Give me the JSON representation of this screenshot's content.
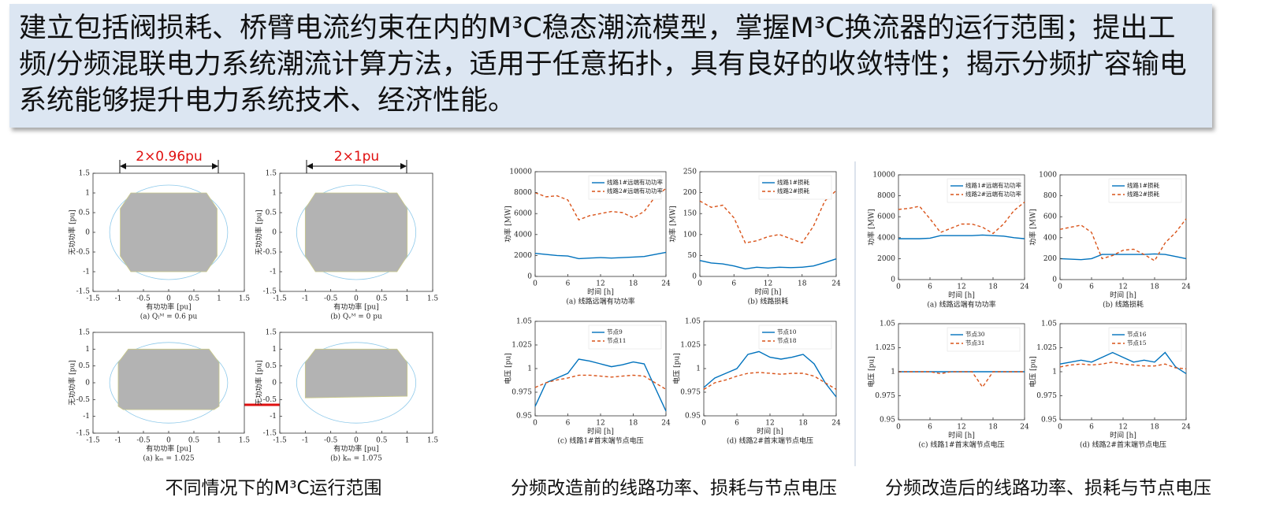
{
  "banner": {
    "text": "建立包括阀损耗、桥臂电流约束在内的M³C稳态潮流模型，掌握M³C换流器的运行范围；提出工频/分频混联电力系统潮流计算方法，适用于任意拓扑，具有良好的收敛特性；揭示分频扩容输电系统能够提升电力系统技术、经济性能。"
  },
  "captions": [
    "不同情况下的M³C运行范围",
    "分频改造前的线路功率、损耗与节点电压",
    "分频改造后的线路功率、损耗与节点电压"
  ],
  "chart_data": [
    {
      "type": "area",
      "subtitle": "(a) Qₗᴹ = 0.6 pu",
      "annotation": "2×0.96pu",
      "xlabel": "有功功率 [pu]",
      "ylabel": "无功功率 [pu]",
      "xlim": [
        -1.5,
        1.5
      ],
      "ylim": [
        -1.5,
        1.5
      ],
      "xticks": [
        -1.5,
        -1,
        -0.5,
        0,
        0.5,
        1,
        1.5
      ],
      "yticks": [
        -1.5,
        -1,
        -0.5,
        0,
        0.5,
        1,
        1.5
      ],
      "series": [
        {
          "color": "#b3b3b3",
          "x": [
            -0.96,
            -0.96,
            -0.75,
            0.75,
            0.96,
            0.96,
            0.75,
            -0.75
          ],
          "values": [
            -0.6,
            0.6,
            1,
            1,
            0.6,
            -0.6,
            -1,
            -1
          ]
        }
      ]
    },
    {
      "type": "area",
      "subtitle": "(b) Qᵥᴹ = 0 pu",
      "annotation": "2×1pu",
      "xlabel": "有功功率 [pu]",
      "ylabel": "无功功率 [pu]",
      "xlim": [
        -1.5,
        1.5
      ],
      "ylim": [
        -1.5,
        1.5
      ],
      "xticks": [
        -1.5,
        -1,
        -0.5,
        0,
        0.5,
        1,
        1.5
      ],
      "yticks": [
        -1.5,
        -1,
        -0.5,
        0,
        0.5,
        1,
        1.5
      ],
      "series": [
        {
          "color": "#b3b3b3",
          "x": [
            -1,
            -1,
            -0.8,
            0.8,
            1,
            1,
            0.8,
            -0.8
          ],
          "values": [
            -0.6,
            0.6,
            1,
            1,
            0.6,
            -0.6,
            -1,
            -1
          ]
        }
      ]
    },
    {
      "type": "area",
      "subtitle": "(a) kₘ = 1.025",
      "xlabel": "有功功率 [pu]",
      "ylabel": "无功功率 [pu]",
      "xlim": [
        -1.5,
        1.5
      ],
      "ylim": [
        -1.5,
        1.5
      ],
      "xticks": [
        -1.5,
        -1,
        -0.5,
        0,
        0.5,
        1,
        1.5
      ],
      "yticks": [
        -1.5,
        -1,
        -0.5,
        0,
        0.5,
        1,
        1.5
      ],
      "series": [
        {
          "color": "#b3b3b3",
          "x": [
            -1,
            -1,
            -0.8,
            0.8,
            1,
            1,
            0.9,
            -0.9
          ],
          "values": [
            -0.7,
            0.6,
            1,
            1,
            0.6,
            -0.7,
            -0.8,
            -0.8
          ]
        }
      ]
    },
    {
      "type": "area",
      "subtitle": "(b) kₘ = 1.075",
      "xlabel": "有功功率 [pu]",
      "ylabel": "无功功率 [pu]",
      "xlim": [
        -1.5,
        1.5
      ],
      "ylim": [
        -1.5,
        1.5
      ],
      "xticks": [
        -1.5,
        -1,
        -0.5,
        0,
        0.5,
        1,
        1.5
      ],
      "yticks": [
        -1.5,
        -1,
        -0.5,
        0,
        0.5,
        1,
        1.5
      ],
      "series": [
        {
          "color": "#b3b3b3",
          "x": [
            -1,
            -1,
            -0.8,
            0.8,
            1,
            1
          ],
          "values": [
            -0.45,
            0.6,
            1,
            1,
            0.6,
            -0.4
          ]
        }
      ]
    },
    {
      "type": "line",
      "subtitle": "(a) 线路远端有功功率",
      "xlabel": "时间 [h]",
      "ylabel": "功率 [MW]",
      "xlim": [
        0,
        24
      ],
      "ylim": [
        0,
        10000
      ],
      "xticks": [
        0,
        6,
        12,
        18,
        24
      ],
      "yticks": [
        0,
        2000,
        4000,
        6000,
        8000,
        10000
      ],
      "x": [
        0,
        2,
        4,
        6,
        8,
        10,
        12,
        14,
        16,
        18,
        20,
        22,
        24
      ],
      "series": [
        {
          "name": "线路1#远端有功功率",
          "color": "#0072bd",
          "values": [
            2200,
            2100,
            2000,
            1950,
            1700,
            1750,
            1800,
            1750,
            1800,
            1850,
            1900,
            2100,
            2300
          ]
        },
        {
          "name": "线路2#远端有功功率",
          "color": "#d95319",
          "dash": true,
          "values": [
            8000,
            7600,
            7700,
            7300,
            5400,
            5800,
            6000,
            6200,
            6100,
            5600,
            6200,
            7600,
            8400
          ]
        }
      ]
    },
    {
      "type": "line",
      "subtitle": "(b) 线路损耗",
      "xlabel": "时间 [h]",
      "ylabel": "功率 [MW]",
      "xlim": [
        0,
        24
      ],
      "ylim": [
        0,
        250
      ],
      "xticks": [
        0,
        6,
        12,
        18,
        24
      ],
      "yticks": [
        0,
        50,
        100,
        150,
        200,
        250
      ],
      "x": [
        0,
        2,
        4,
        6,
        8,
        10,
        12,
        14,
        16,
        18,
        20,
        22,
        24
      ],
      "series": [
        {
          "name": "线路1#损耗",
          "color": "#0072bd",
          "values": [
            38,
            32,
            30,
            25,
            18,
            22,
            20,
            22,
            21,
            22,
            25,
            33,
            42
          ]
        },
        {
          "name": "线路2#损耗",
          "color": "#d95319",
          "dash": true,
          "values": [
            180,
            165,
            170,
            140,
            80,
            85,
            95,
            100,
            90,
            80,
            120,
            180,
            205
          ]
        }
      ]
    },
    {
      "type": "line",
      "subtitle": "(c) 线路1#首末端节点电压",
      "xlabel": "时间 [h]",
      "ylabel": "电压 [pu]",
      "xlim": [
        0,
        24
      ],
      "ylim": [
        0.95,
        1.05
      ],
      "xticks": [
        0,
        6,
        12,
        18,
        24
      ],
      "yticks": [
        0.95,
        0.975,
        1,
        1.025,
        1.05
      ],
      "x": [
        0,
        2,
        4,
        6,
        8,
        10,
        12,
        14,
        16,
        18,
        20,
        22,
        24
      ],
      "series": [
        {
          "name": "节点9",
          "color": "#0072bd",
          "values": [
            0.96,
            0.985,
            0.99,
            0.995,
            1.01,
            1.008,
            1.005,
            1.002,
            1.004,
            1.007,
            1.005,
            0.98,
            0.955
          ]
        },
        {
          "name": "节点11",
          "color": "#d95319",
          "dash": true,
          "values": [
            0.98,
            0.985,
            0.988,
            0.99,
            0.993,
            0.993,
            0.992,
            0.991,
            0.992,
            0.993,
            0.992,
            0.985,
            0.978
          ]
        }
      ]
    },
    {
      "type": "line",
      "subtitle": "(d) 线路2#首末端节点电压",
      "xlabel": "时间 [h]",
      "ylabel": "电压 [pu]",
      "xlim": [
        0,
        24
      ],
      "ylim": [
        0.95,
        1.05
      ],
      "xticks": [
        0,
        6,
        12,
        18,
        24
      ],
      "yticks": [
        0.95,
        0.975,
        1,
        1.025,
        1.05
      ],
      "x": [
        0,
        2,
        4,
        6,
        8,
        10,
        12,
        14,
        16,
        18,
        20,
        22,
        24
      ],
      "series": [
        {
          "name": "节点10",
          "color": "#0072bd",
          "values": [
            0.98,
            0.99,
            0.995,
            1.0,
            1.015,
            1.018,
            1.012,
            1.01,
            1.012,
            1.015,
            1.005,
            0.985,
            0.97
          ]
        },
        {
          "name": "节点18",
          "color": "#d95319",
          "dash": true,
          "values": [
            0.978,
            0.985,
            0.988,
            0.992,
            0.995,
            0.996,
            0.995,
            0.994,
            0.995,
            0.995,
            0.992,
            0.985,
            0.978
          ]
        }
      ]
    },
    {
      "type": "line",
      "subtitle": "(a) 线路远端有功功率",
      "xlabel": "时间 [h]",
      "ylabel": "功率 [MW]",
      "xlim": [
        0,
        24
      ],
      "ylim": [
        0,
        10000
      ],
      "xticks": [
        0,
        6,
        12,
        18,
        24
      ],
      "yticks": [
        0,
        2000,
        4000,
        6000,
        8000,
        10000
      ],
      "x": [
        0,
        2,
        4,
        6,
        8,
        10,
        12,
        14,
        16,
        18,
        20,
        22,
        24
      ],
      "series": [
        {
          "name": "线路1#远端有功功率",
          "color": "#0072bd",
          "values": [
            3900,
            3900,
            3900,
            3950,
            4200,
            4200,
            4200,
            4200,
            4250,
            4200,
            4150,
            4000,
            3900
          ]
        },
        {
          "name": "线路2#远端有功功率",
          "color": "#d95319",
          "dash": true,
          "values": [
            6700,
            6800,
            7000,
            5800,
            4500,
            4900,
            5300,
            5300,
            5000,
            4400,
            5300,
            6600,
            7400
          ]
        }
      ]
    },
    {
      "type": "line",
      "subtitle": "(b) 线路损耗",
      "xlabel": "时间 [h]",
      "ylabel": "功率 [MW]",
      "xlim": [
        0,
        24
      ],
      "ylim": [
        0,
        1000
      ],
      "xticks": [
        0,
        6,
        12,
        18,
        24
      ],
      "yticks": [
        0,
        200,
        400,
        600,
        800,
        1000
      ],
      "x": [
        0,
        2,
        4,
        6,
        8,
        10,
        12,
        14,
        16,
        18,
        20,
        22,
        24
      ],
      "series": [
        {
          "name": "线路1#损耗",
          "color": "#0072bd",
          "values": [
            200,
            195,
            190,
            200,
            240,
            240,
            240,
            240,
            240,
            245,
            240,
            220,
            200
          ]
        },
        {
          "name": "线路2#损耗",
          "color": "#d95319",
          "dash": true,
          "values": [
            480,
            500,
            520,
            450,
            200,
            230,
            280,
            290,
            240,
            180,
            350,
            450,
            580
          ]
        }
      ]
    },
    {
      "type": "line",
      "subtitle": "(c) 线路1#首末端节点电压",
      "xlabel": "时间 [h]",
      "ylabel": "电压 [pu]",
      "xlim": [
        0,
        24
      ],
      "ylim": [
        0.95,
        1.05
      ],
      "xticks": [
        0,
        6,
        12,
        18,
        24
      ],
      "yticks": [
        0.95,
        0.975,
        1,
        1.025,
        1.05
      ],
      "x": [
        0,
        2,
        4,
        6,
        8,
        10,
        12,
        14,
        16,
        18,
        20,
        22,
        24
      ],
      "series": [
        {
          "name": "节点30",
          "color": "#0072bd",
          "values": [
            1,
            1,
            1,
            1,
            1,
            1,
            1,
            1,
            1,
            1,
            1,
            1,
            1
          ]
        },
        {
          "name": "节点31",
          "color": "#d95319",
          "dash": true,
          "values": [
            1,
            1,
            1,
            1,
            0.998,
            1,
            1,
            1,
            0.984,
            1,
            1,
            1,
            1
          ]
        }
      ]
    },
    {
      "type": "line",
      "subtitle": "(d) 线路2#首末端节点电压",
      "xlabel": "时间 [h]",
      "ylabel": "电压 [pu]",
      "xlim": [
        0,
        24
      ],
      "ylim": [
        0.95,
        1.05
      ],
      "xticks": [
        0,
        6,
        12,
        18,
        24
      ],
      "yticks": [
        0.95,
        0.975,
        1,
        1.025,
        1.05
      ],
      "x": [
        0,
        2,
        4,
        6,
        8,
        10,
        12,
        14,
        16,
        18,
        20,
        22,
        24
      ],
      "series": [
        {
          "name": "节点16",
          "color": "#0072bd",
          "values": [
            1.008,
            1.01,
            1.012,
            1.01,
            1.015,
            1.02,
            1.015,
            1.01,
            1.012,
            1.01,
            1.02,
            1.005,
            0.998
          ]
        },
        {
          "name": "节点15",
          "color": "#d95319",
          "dash": true,
          "values": [
            1.005,
            1.007,
            1.008,
            1.007,
            1.008,
            1.01,
            1.008,
            1.007,
            1.006,
            1.006,
            1.008,
            1.004,
            1.003
          ]
        }
      ]
    }
  ]
}
